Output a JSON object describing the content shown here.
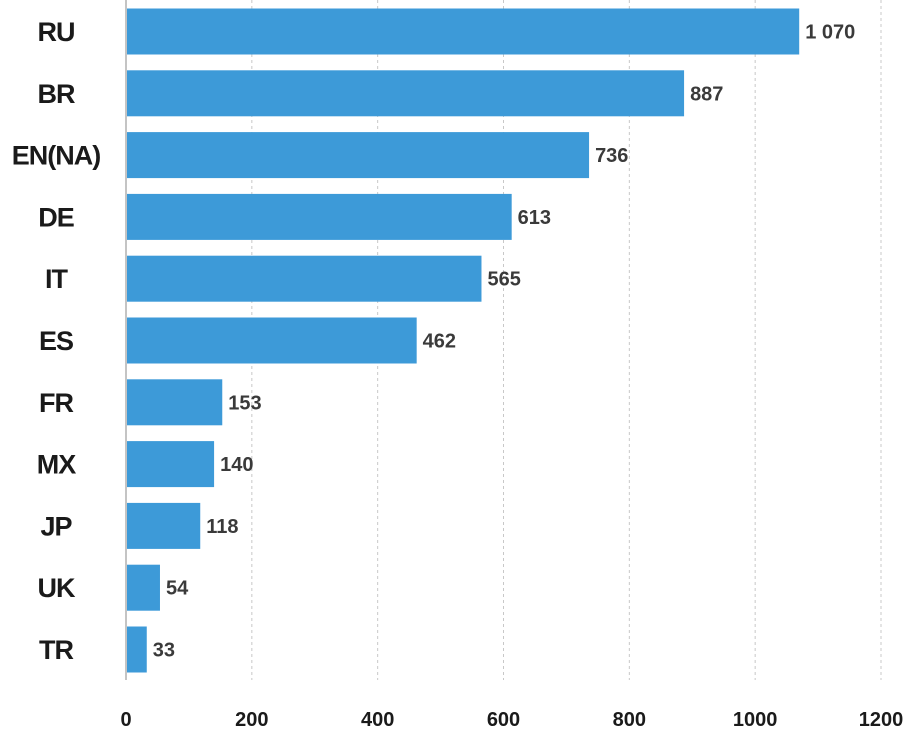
{
  "chart_data": {
    "type": "bar",
    "orientation": "horizontal",
    "categories": [
      "RU",
      "BR",
      "EN(NA)",
      "DE",
      "IT",
      "ES",
      "FR",
      "MX",
      "JP",
      "UK",
      "TR"
    ],
    "values": [
      1070,
      887,
      736,
      613,
      565,
      462,
      153,
      140,
      118,
      54,
      33
    ],
    "value_labels": [
      "1 070",
      "887",
      "736",
      "613",
      "565",
      "462",
      "153",
      "140",
      "118",
      "54",
      "33"
    ],
    "xlim": [
      0,
      1200
    ],
    "x_ticks": [
      0,
      200,
      400,
      600,
      800,
      1000,
      1200
    ],
    "x_tick_labels": [
      "0",
      "200",
      "400",
      "600",
      "800",
      "1000",
      "1200"
    ],
    "grid": "vertical dashed",
    "bar_color": "#3d9ad8"
  }
}
